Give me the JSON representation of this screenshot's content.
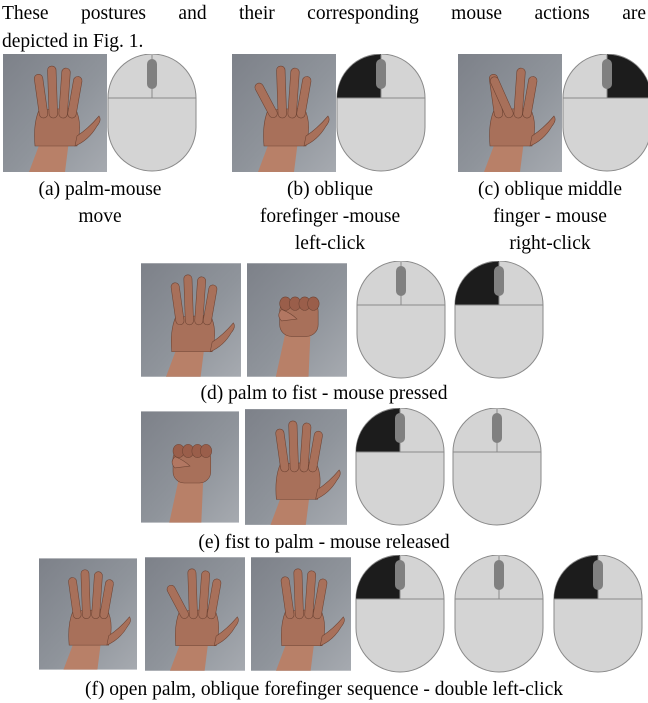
{
  "intro": {
    "line1": "These postures and their corresponding mouse actions are",
    "line2": "depicted in Fig. 1."
  },
  "colors": {
    "mouse_body": "#d4d4d4",
    "mouse_outline": "#8a8a8a",
    "button_pressed": "#1c1c1c",
    "scroll_wheel": "#808080",
    "photo_background": "#8f949b",
    "skin": "#a8705a"
  },
  "panels": {
    "a": {
      "caption": "(a) palm-mouse\nmove",
      "hands": [
        "open-palm"
      ],
      "mice": [
        "none"
      ]
    },
    "b": {
      "caption": "(b) oblique\nforefinger -mouse\nleft-click",
      "hands": [
        "oblique-forefinger"
      ],
      "mice": [
        "left"
      ]
    },
    "c": {
      "caption": "(c) oblique middle\nfinger - mouse\nright-click",
      "hands": [
        "oblique-middle-finger"
      ],
      "mice": [
        "right"
      ]
    },
    "d": {
      "caption": "(d) palm to fist - mouse pressed",
      "hands": [
        "open-palm",
        "fist"
      ],
      "mice": [
        "none",
        "left"
      ]
    },
    "e": {
      "caption": "(e) fist to palm - mouse released",
      "hands": [
        "fist",
        "open-palm"
      ],
      "mice": [
        "left",
        "none"
      ]
    },
    "f": {
      "caption": "(f) open palm, oblique forefinger sequence - double left-click",
      "hands": [
        "open-palm",
        "oblique-forefinger",
        "open-palm"
      ],
      "mice": [
        "left",
        "none",
        "left"
      ]
    }
  }
}
